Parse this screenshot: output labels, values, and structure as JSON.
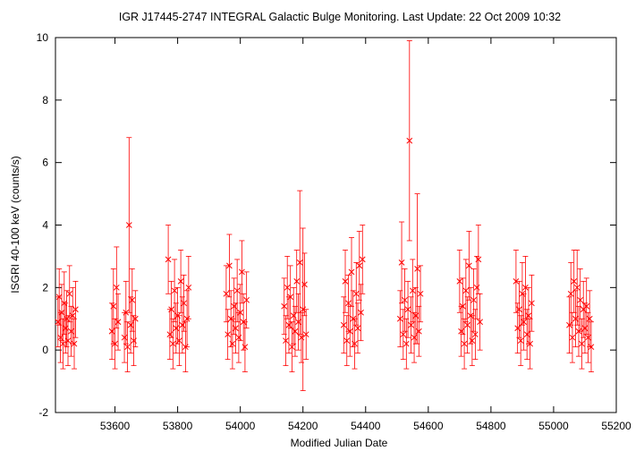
{
  "chart_data": {
    "type": "scatter",
    "title": "IGR J17445-2747   INTEGRAL Galactic Bulge Monitoring.  Last Update: 22 Oct 2009 10:32",
    "xlabel": "Modified Julian Date",
    "ylabel": "ISGRI 40-100 keV (counts/s)",
    "xlim": [
      53410,
      55200
    ],
    "ylim": [
      -2,
      10
    ],
    "xticks": [
      53600,
      53800,
      54000,
      54200,
      54400,
      54600,
      54800,
      55000,
      55200
    ],
    "yticks": [
      -2,
      0,
      2,
      4,
      6,
      8,
      10
    ],
    "grid": false,
    "legend": "none",
    "marker_color": "#ff0000",
    "series": [
      {
        "points": [
          {
            "x": 53418,
            "y": 0.9,
            "err": 0.8
          },
          {
            "x": 53422,
            "y": 1.7,
            "err": 0.9
          },
          {
            "x": 53426,
            "y": 0.4,
            "err": 0.8
          },
          {
            "x": 53430,
            "y": 1.2,
            "err": 0.9
          },
          {
            "x": 53434,
            "y": 0.2,
            "err": 0.8
          },
          {
            "x": 53438,
            "y": 1.5,
            "err": 1.0
          },
          {
            "x": 53442,
            "y": 0.7,
            "err": 0.8
          },
          {
            "x": 53446,
            "y": 1.0,
            "err": 0.9
          },
          {
            "x": 53450,
            "y": 0.3,
            "err": 0.8
          },
          {
            "x": 53455,
            "y": 1.8,
            "err": 0.9
          },
          {
            "x": 53460,
            "y": 0.6,
            "err": 0.8
          },
          {
            "x": 53465,
            "y": 1.1,
            "err": 0.9
          },
          {
            "x": 53470,
            "y": 0.2,
            "err": 0.8
          },
          {
            "x": 53474,
            "y": 1.3,
            "err": 0.9
          },
          {
            "x": 53590,
            "y": 0.6,
            "err": 0.9
          },
          {
            "x": 53595,
            "y": 1.4,
            "err": 1.2
          },
          {
            "x": 53600,
            "y": 0.2,
            "err": 0.8
          },
          {
            "x": 53605,
            "y": 2.0,
            "err": 1.3
          },
          {
            "x": 53610,
            "y": 0.9,
            "err": 0.9
          },
          {
            "x": 53630,
            "y": 0.4,
            "err": 0.8
          },
          {
            "x": 53635,
            "y": 1.2,
            "err": 1.0
          },
          {
            "x": 53640,
            "y": 0.1,
            "err": 0.8
          },
          {
            "x": 53645,
            "y": 4.0,
            "err": 2.8
          },
          {
            "x": 53650,
            "y": 0.8,
            "err": 0.9
          },
          {
            "x": 53655,
            "y": 1.6,
            "err": 1.0
          },
          {
            "x": 53660,
            "y": 0.3,
            "err": 0.8
          },
          {
            "x": 53665,
            "y": 1.0,
            "err": 0.9
          },
          {
            "x": 53770,
            "y": 2.9,
            "err": 1.1
          },
          {
            "x": 53775,
            "y": 0.5,
            "err": 0.8
          },
          {
            "x": 53780,
            "y": 1.3,
            "err": 0.9
          },
          {
            "x": 53785,
            "y": 0.2,
            "err": 0.8
          },
          {
            "x": 53790,
            "y": 1.9,
            "err": 1.0
          },
          {
            "x": 53795,
            "y": 0.7,
            "err": 0.8
          },
          {
            "x": 53800,
            "y": 1.1,
            "err": 0.9
          },
          {
            "x": 53805,
            "y": 0.3,
            "err": 0.8
          },
          {
            "x": 53810,
            "y": 2.2,
            "err": 1.0
          },
          {
            "x": 53815,
            "y": 0.8,
            "err": 0.9
          },
          {
            "x": 53820,
            "y": 1.5,
            "err": 0.9
          },
          {
            "x": 53825,
            "y": 0.1,
            "err": 0.8
          },
          {
            "x": 53830,
            "y": 1.0,
            "err": 0.9
          },
          {
            "x": 53835,
            "y": 2.0,
            "err": 1.0
          },
          {
            "x": 53955,
            "y": 1.8,
            "err": 0.9
          },
          {
            "x": 53960,
            "y": 0.5,
            "err": 0.8
          },
          {
            "x": 53965,
            "y": 2.7,
            "err": 1.0
          },
          {
            "x": 53970,
            "y": 1.0,
            "err": 0.9
          },
          {
            "x": 53975,
            "y": 0.2,
            "err": 0.8
          },
          {
            "x": 53980,
            "y": 1.4,
            "err": 0.9
          },
          {
            "x": 53985,
            "y": 0.7,
            "err": 0.8
          },
          {
            "x": 53990,
            "y": 1.9,
            "err": 1.0
          },
          {
            "x": 53995,
            "y": 0.4,
            "err": 0.8
          },
          {
            "x": 54000,
            "y": 1.2,
            "err": 0.9
          },
          {
            "x": 54005,
            "y": 2.5,
            "err": 1.0
          },
          {
            "x": 54010,
            "y": 0.9,
            "err": 0.9
          },
          {
            "x": 54015,
            "y": 0.1,
            "err": 0.8
          },
          {
            "x": 54020,
            "y": 1.6,
            "err": 0.9
          },
          {
            "x": 54140,
            "y": 1.4,
            "err": 0.9
          },
          {
            "x": 54145,
            "y": 0.3,
            "err": 0.8
          },
          {
            "x": 54150,
            "y": 2.0,
            "err": 1.0
          },
          {
            "x": 54155,
            "y": 0.8,
            "err": 0.9
          },
          {
            "x": 54160,
            "y": 1.7,
            "err": 1.0
          },
          {
            "x": 54165,
            "y": 0.1,
            "err": 0.8
          },
          {
            "x": 54170,
            "y": 1.1,
            "err": 0.9
          },
          {
            "x": 54175,
            "y": 0.6,
            "err": 0.8
          },
          {
            "x": 54180,
            "y": 2.2,
            "err": 1.0
          },
          {
            "x": 54185,
            "y": 0.9,
            "err": 0.9
          },
          {
            "x": 54190,
            "y": 2.8,
            "err": 2.3
          },
          {
            "x": 54195,
            "y": 0.4,
            "err": 0.8
          },
          {
            "x": 54200,
            "y": 1.3,
            "err": 2.6
          },
          {
            "x": 54205,
            "y": 2.1,
            "err": 1.0
          },
          {
            "x": 54210,
            "y": 0.5,
            "err": 0.8
          },
          {
            "x": 54330,
            "y": 0.8,
            "err": 0.9
          },
          {
            "x": 54335,
            "y": 2.2,
            "err": 1.0
          },
          {
            "x": 54340,
            "y": 0.3,
            "err": 0.8
          },
          {
            "x": 54345,
            "y": 1.5,
            "err": 0.9
          },
          {
            "x": 54350,
            "y": 0.6,
            "err": 0.8
          },
          {
            "x": 54355,
            "y": 2.5,
            "err": 1.1
          },
          {
            "x": 54360,
            "y": 1.0,
            "err": 0.9
          },
          {
            "x": 54365,
            "y": 0.2,
            "err": 0.8
          },
          {
            "x": 54370,
            "y": 1.8,
            "err": 1.0
          },
          {
            "x": 54375,
            "y": 0.7,
            "err": 0.8
          },
          {
            "x": 54380,
            "y": 2.7,
            "err": 1.1
          },
          {
            "x": 54385,
            "y": 1.2,
            "err": 0.9
          },
          {
            "x": 54390,
            "y": 2.9,
            "err": 1.1
          },
          {
            "x": 54510,
            "y": 1.0,
            "err": 0.9
          },
          {
            "x": 54515,
            "y": 2.8,
            "err": 1.3
          },
          {
            "x": 54520,
            "y": 0.5,
            "err": 0.8
          },
          {
            "x": 54525,
            "y": 1.6,
            "err": 1.0
          },
          {
            "x": 54530,
            "y": 0.2,
            "err": 0.8
          },
          {
            "x": 54535,
            "y": 1.3,
            "err": 0.9
          },
          {
            "x": 54540,
            "y": 6.7,
            "err": 3.2
          },
          {
            "x": 54545,
            "y": 0.8,
            "err": 0.9
          },
          {
            "x": 54550,
            "y": 1.9,
            "err": 1.0
          },
          {
            "x": 54555,
            "y": 0.4,
            "err": 0.8
          },
          {
            "x": 54560,
            "y": 1.1,
            "err": 0.9
          },
          {
            "x": 54565,
            "y": 2.6,
            "err": 2.4
          },
          {
            "x": 54570,
            "y": 0.6,
            "err": 0.8
          },
          {
            "x": 54575,
            "y": 1.8,
            "err": 0.9
          },
          {
            "x": 54700,
            "y": 2.2,
            "err": 1.0
          },
          {
            "x": 54705,
            "y": 0.6,
            "err": 0.8
          },
          {
            "x": 54710,
            "y": 1.4,
            "err": 0.9
          },
          {
            "x": 54715,
            "y": 0.2,
            "err": 0.8
          },
          {
            "x": 54720,
            "y": 1.9,
            "err": 1.0
          },
          {
            "x": 54725,
            "y": 0.8,
            "err": 0.9
          },
          {
            "x": 54730,
            "y": 2.7,
            "err": 1.1
          },
          {
            "x": 54735,
            "y": 1.1,
            "err": 0.9
          },
          {
            "x": 54740,
            "y": 0.3,
            "err": 0.8
          },
          {
            "x": 54745,
            "y": 1.6,
            "err": 1.0
          },
          {
            "x": 54750,
            "y": 0.5,
            "err": 0.8
          },
          {
            "x": 54755,
            "y": 2.0,
            "err": 1.0
          },
          {
            "x": 54760,
            "y": 2.9,
            "err": 1.1
          },
          {
            "x": 54765,
            "y": 0.9,
            "err": 0.9
          },
          {
            "x": 54880,
            "y": 2.2,
            "err": 1.0
          },
          {
            "x": 54885,
            "y": 0.7,
            "err": 0.8
          },
          {
            "x": 54890,
            "y": 1.3,
            "err": 0.9
          },
          {
            "x": 54895,
            "y": 0.3,
            "err": 0.8
          },
          {
            "x": 54900,
            "y": 1.8,
            "err": 1.0
          },
          {
            "x": 54905,
            "y": 0.9,
            "err": 0.9
          },
          {
            "x": 54910,
            "y": 2.0,
            "err": 1.0
          },
          {
            "x": 54915,
            "y": 0.5,
            "err": 0.8
          },
          {
            "x": 54920,
            "y": 1.1,
            "err": 0.9
          },
          {
            "x": 54925,
            "y": 0.2,
            "err": 0.8
          },
          {
            "x": 54930,
            "y": 1.5,
            "err": 0.9
          },
          {
            "x": 55050,
            "y": 0.8,
            "err": 0.9
          },
          {
            "x": 55055,
            "y": 1.8,
            "err": 1.0
          },
          {
            "x": 55060,
            "y": 0.4,
            "err": 0.8
          },
          {
            "x": 55065,
            "y": 2.2,
            "err": 1.0
          },
          {
            "x": 55070,
            "y": 1.0,
            "err": 0.9
          },
          {
            "x": 55075,
            "y": 2.0,
            "err": 1.2
          },
          {
            "x": 55080,
            "y": 0.6,
            "err": 0.8
          },
          {
            "x": 55085,
            "y": 1.6,
            "err": 1.0
          },
          {
            "x": 55090,
            "y": 0.2,
            "err": 0.8
          },
          {
            "x": 55095,
            "y": 1.3,
            "err": 0.9
          },
          {
            "x": 55100,
            "y": 0.7,
            "err": 0.8
          },
          {
            "x": 55105,
            "y": 1.4,
            "err": 0.9
          },
          {
            "x": 55110,
            "y": 0.4,
            "err": 0.8
          },
          {
            "x": 55115,
            "y": 1.0,
            "err": 0.9
          },
          {
            "x": 55120,
            "y": 0.1,
            "err": 0.8
          }
        ]
      }
    ]
  }
}
